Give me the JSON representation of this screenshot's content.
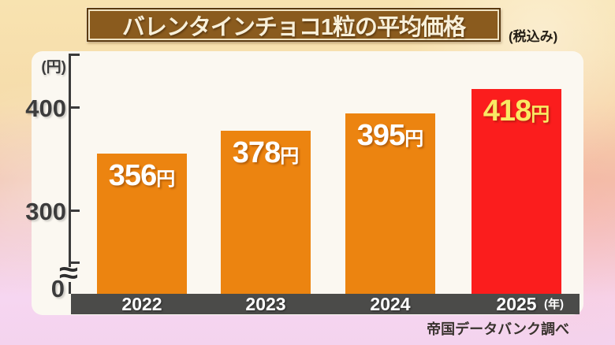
{
  "header": {
    "title": "バレンタインチョコ1粒の平均価格",
    "tax_note": "(税込み)"
  },
  "chart_data": {
    "type": "bar",
    "title": "バレンタインチョコ1粒の平均価格 (税込み)",
    "categories": [
      "2022",
      "2023",
      "2024",
      "2025"
    ],
    "values": [
      356,
      378,
      395,
      418
    ],
    "value_suffix": "円",
    "xlabel": "(年)",
    "ylabel": "(円)",
    "y_ticks": [
      400,
      300,
      0
    ],
    "ylim": [
      0,
      450
    ],
    "axis_break": true,
    "axis_break_symbol": "≈",
    "grid": false,
    "legend": false,
    "bar_colors": [
      "#ec8410",
      "#ec8410",
      "#ec8410",
      "#fb1d1d"
    ],
    "value_label_colors": [
      "#ffffff",
      "#ffffff",
      "#ffffff",
      "#f9e964"
    ],
    "accent_colors": {
      "title_box_fill": "#8a5b1e",
      "title_box_border_outer": "#5b3a10",
      "title_box_border_inner": "#efe2c2",
      "axis": "#3a3a3a",
      "x_band": "#4b4b49"
    }
  },
  "footer": {
    "source": "帝国データバンク調べ"
  }
}
